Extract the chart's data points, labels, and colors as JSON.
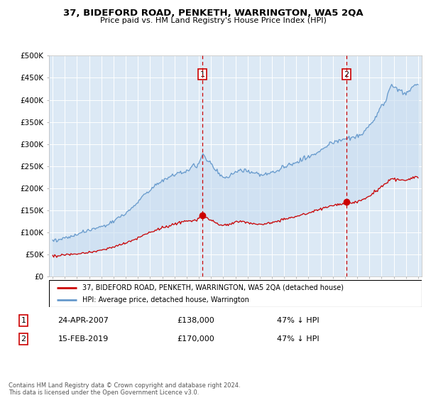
{
  "title": "37, BIDEFORD ROAD, PENKETH, WARRINGTON, WA5 2QA",
  "subtitle": "Price paid vs. HM Land Registry's House Price Index (HPI)",
  "legend_line1": "37, BIDEFORD ROAD, PENKETH, WARRINGTON, WA5 2QA (detached house)",
  "legend_line2": "HPI: Average price, detached house, Warrington",
  "annotation1_label": "1",
  "annotation1_date": "24-APR-2007",
  "annotation1_price": "£138,000",
  "annotation1_pct": "47% ↓ HPI",
  "annotation2_label": "2",
  "annotation2_date": "15-FEB-2019",
  "annotation2_price": "£170,000",
  "annotation2_pct": "47% ↓ HPI",
  "footer": "Contains HM Land Registry data © Crown copyright and database right 2024.\nThis data is licensed under the Open Government Licence v3.0.",
  "background_color": "#dce9f5",
  "fill_color": "#c8ddf0",
  "red_line_color": "#cc0000",
  "blue_line_color": "#6699cc",
  "vline_color": "#cc0000",
  "ylim": [
    0,
    500000
  ],
  "yticks": [
    0,
    50000,
    100000,
    150000,
    200000,
    250000,
    300000,
    350000,
    400000,
    450000,
    500000
  ],
  "sale1_year": 2007.29,
  "sale1_price": 138000,
  "sale2_year": 2019.12,
  "sale2_price": 170000
}
